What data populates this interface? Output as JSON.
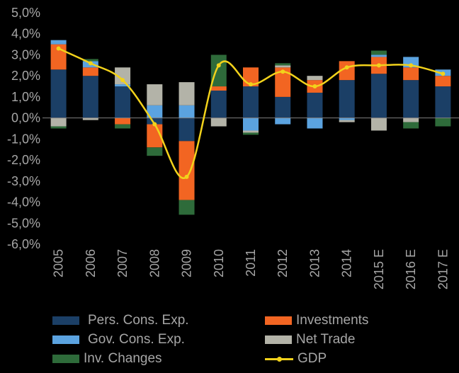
{
  "chart_data": {
    "type": "bar",
    "subtype": "stacked-bar-with-line",
    "title": "",
    "xlabel": "",
    "ylabel": "",
    "ylim": [
      -6.0,
      5.0
    ],
    "y_ticks": [
      "5,0%",
      "4,0%",
      "3,0%",
      "2,0%",
      "1,0%",
      "0,0%",
      "-1,0%",
      "-2,0%",
      "-3,0%",
      "-4,0%",
      "-5,0%",
      "-6,0%"
    ],
    "grid": false,
    "legend_position": "bottom",
    "categories": [
      "2005",
      "2006",
      "2007",
      "2008",
      "2009",
      "2010",
      "2011",
      "2012",
      "2013",
      "2014",
      "2015 E",
      "2016 E",
      "2017 E"
    ],
    "series": [
      {
        "name": "Pers. Cons. Exp.",
        "color": "#1b3f66",
        "values": [
          2.3,
          2.0,
          1.5,
          -0.3,
          -1.1,
          1.3,
          1.5,
          1.0,
          1.2,
          1.8,
          2.1,
          1.8,
          1.5
        ]
      },
      {
        "name": "Investments",
        "color": "#f26522",
        "values": [
          1.2,
          0.4,
          -0.3,
          -1.1,
          -2.8,
          0.2,
          0.9,
          1.4,
          0.6,
          0.9,
          0.8,
          0.6,
          0.5
        ]
      },
      {
        "name": "Gov. Cons. Exp.",
        "color": "#5ba3e0",
        "values": [
          0.2,
          0.3,
          0.1,
          0.6,
          0.6,
          0.0,
          -0.6,
          -0.3,
          -0.5,
          -0.1,
          0.1,
          0.5,
          0.3
        ]
      },
      {
        "name": "Net Trade",
        "color": "#b3b3a8",
        "values": [
          -0.4,
          -0.1,
          0.8,
          1.0,
          1.1,
          -0.4,
          -0.1,
          0.1,
          0.2,
          -0.1,
          -0.6,
          -0.2,
          0.0
        ]
      },
      {
        "name": "Inv. Changes",
        "color": "#2e6b3a",
        "values": [
          -0.1,
          0.1,
          -0.2,
          -0.4,
          -0.7,
          1.5,
          -0.1,
          0.1,
          0.0,
          0.0,
          0.2,
          -0.3,
          -0.4
        ]
      }
    ],
    "line": {
      "name": "GDP",
      "color": "#f2d21b",
      "values": [
        3.3,
        2.6,
        1.8,
        -0.3,
        -2.8,
        2.5,
        1.6,
        2.2,
        1.5,
        2.4,
        2.5,
        2.5,
        2.1
      ]
    }
  }
}
